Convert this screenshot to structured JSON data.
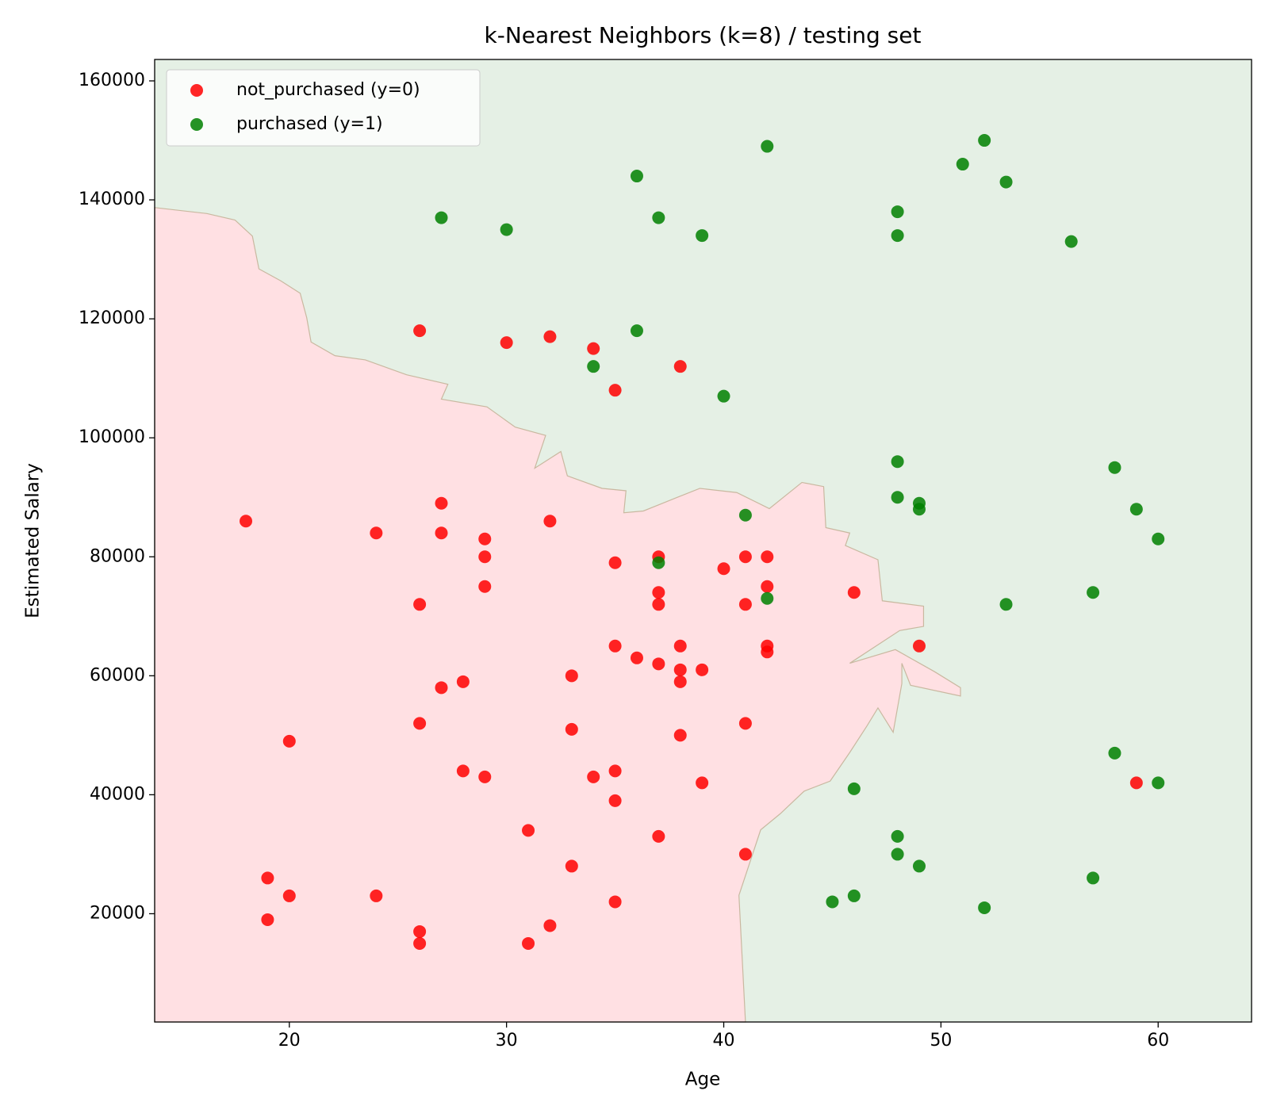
{
  "chart_data": {
    "type": "scatter",
    "title": "k-Nearest Neighbors (k=8) / testing set",
    "x_label": "Age",
    "y_label": "Estimated Salary",
    "xlim": [
      13.8,
      64.3
    ],
    "ylim": [
      1800,
      163600
    ],
    "xticks": [
      20,
      30,
      40,
      50,
      60
    ],
    "yticks": [
      20000,
      40000,
      60000,
      80000,
      100000,
      120000,
      140000,
      160000
    ],
    "legend": "upper left",
    "background_color": "#e5f0e5",
    "region": {
      "color": "#ffe0e3",
      "edge": "#c9b8a0",
      "x": [
        13.8,
        16.2,
        17.5,
        18.3,
        18.6,
        19.6,
        20.5,
        20.8,
        21.0,
        22.1,
        23.5,
        25.4,
        27.3,
        27.0,
        29.1,
        30.4,
        31.8,
        31.3,
        32.5,
        32.8,
        34.4,
        35.5,
        35.4,
        36.3,
        37.8,
        38.9,
        40.6,
        42.1,
        43.6,
        44.6,
        44.7,
        45.8,
        45.6,
        47.1,
        47.3,
        49.2,
        49.2,
        48.1,
        45.8,
        47.9,
        49.7,
        50.9,
        50.9,
        48.6,
        48.2,
        48.2,
        47.8,
        47.1,
        46.6,
        45.8,
        44.9,
        43.7,
        42.6,
        41.7,
        40.7,
        41.0
      ],
      "y": [
        138700,
        137700,
        136600,
        133900,
        128400,
        126400,
        124300,
        120200,
        116100,
        113800,
        113100,
        110600,
        109000,
        106500,
        105200,
        101800,
        100400,
        94900,
        97700,
        93600,
        91500,
        91100,
        87400,
        87700,
        89900,
        91500,
        90800,
        88100,
        92500,
        91800,
        84900,
        84000,
        81900,
        79500,
        72600,
        71700,
        68300,
        67600,
        62100,
        64400,
        60700,
        58000,
        56600,
        58400,
        62100,
        58700,
        50500,
        54600,
        51600,
        47100,
        42300,
        40600,
        36800,
        34100,
        23100,
        1800
      ]
    },
    "series": [
      {
        "name": "not_purchased (y=0)",
        "color": "#ff0000",
        "x": [
          26,
          30,
          32,
          34,
          38,
          35,
          18,
          24,
          27,
          27,
          29,
          29,
          32,
          29,
          26,
          37,
          35,
          40,
          41,
          42,
          37,
          37,
          41,
          42,
          46,
          35,
          38,
          36,
          37,
          38,
          39,
          38,
          42,
          42,
          49,
          28,
          27,
          33,
          26,
          33,
          41,
          20,
          38,
          28,
          29,
          34,
          35,
          35,
          39,
          59,
          31,
          37,
          41,
          33,
          19,
          20,
          24,
          19,
          35,
          32,
          26,
          26,
          31
        ],
        "values": [
          118000,
          116000,
          117000,
          115000,
          112000,
          108000,
          86000,
          84000,
          89000,
          84000,
          83000,
          80000,
          86000,
          75000,
          72000,
          80000,
          79000,
          78000,
          80000,
          80000,
          74000,
          72000,
          72000,
          75000,
          74000,
          65000,
          65000,
          63000,
          62000,
          61000,
          61000,
          59000,
          65000,
          64000,
          65000,
          59000,
          58000,
          60000,
          52000,
          51000,
          52000,
          49000,
          50000,
          44000,
          43000,
          43000,
          44000,
          39000,
          42000,
          42000,
          34000,
          33000,
          30000,
          28000,
          26000,
          23000,
          23000,
          19000,
          22000,
          18000,
          17000,
          15000,
          15000
        ]
      },
      {
        "name": "purchased (y=1)",
        "color": "#008000",
        "x": [
          27,
          30,
          36,
          37,
          39,
          42,
          48,
          48,
          51,
          52,
          53,
          56,
          36,
          34,
          40,
          48,
          48,
          49,
          49,
          58,
          59,
          60,
          41,
          37,
          42,
          53,
          57,
          58,
          60,
          46,
          48,
          48,
          49,
          57,
          45,
          46,
          52
        ],
        "values": [
          137000,
          135000,
          144000,
          137000,
          134000,
          149000,
          138000,
          134000,
          146000,
          150000,
          143000,
          133000,
          118000,
          112000,
          107000,
          96000,
          90000,
          89000,
          88000,
          95000,
          88000,
          83000,
          87000,
          79000,
          73000,
          72000,
          74000,
          47000,
          42000,
          41000,
          33000,
          30000,
          28000,
          26000,
          22000,
          23000,
          21000
        ]
      }
    ]
  }
}
